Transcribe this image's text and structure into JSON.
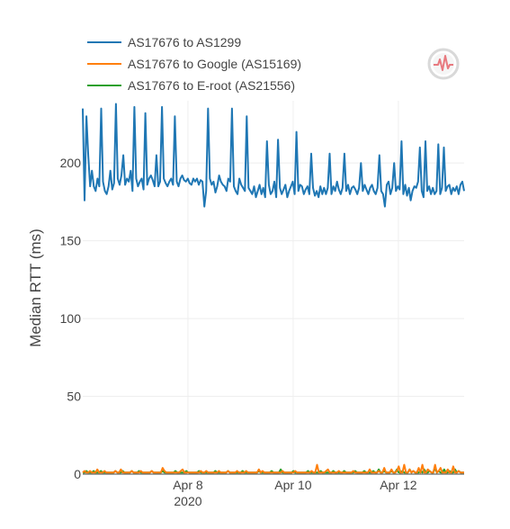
{
  "chart_data": {
    "type": "line",
    "xlabel": "",
    "ylabel": "Median RTT (ms)",
    "ylim": [
      0,
      240
    ],
    "xlim": [
      "2020-04-06",
      "2020-04-13 06:00"
    ],
    "x_ticks": [
      {
        "date": "2020-04-08",
        "label": "Apr 8",
        "sublabel": "2020"
      },
      {
        "date": "2020-04-10",
        "label": "Apr 10",
        "sublabel": ""
      },
      {
        "date": "2020-04-12",
        "label": "Apr 12",
        "sublabel": ""
      }
    ],
    "y_ticks": [
      0,
      50,
      100,
      150,
      200
    ],
    "grid": true,
    "legend_position": "top-left",
    "series": [
      {
        "name": "AS17676 to AS1299",
        "color": "#1f77b4",
        "x_start": "2020-04-06",
        "x_end": "2020-04-13 06:00",
        "values": [
          235,
          176,
          230,
          205,
          185,
          195,
          185,
          182,
          190,
          185,
          235,
          188,
          182,
          180,
          185,
          195,
          183,
          187,
          238,
          190,
          186,
          192,
          205,
          186,
          190,
          188,
          195,
          182,
          236,
          190,
          185,
          188,
          190,
          183,
          232,
          186,
          190,
          192,
          189,
          185,
          205,
          185,
          188,
          236,
          190,
          187,
          185,
          188,
          190,
          186,
          230,
          188,
          185,
          190,
          192,
          189,
          188,
          190,
          187,
          186,
          190,
          188,
          190,
          186,
          189,
          188,
          172,
          182,
          235,
          190,
          186,
          188,
          181,
          185,
          192,
          188,
          186,
          185,
          182,
          190,
          188,
          235,
          185,
          182,
          180,
          190,
          186,
          184,
          182,
          230,
          184,
          182,
          180,
          185,
          178,
          182,
          186,
          180,
          184,
          178,
          214,
          186,
          180,
          182,
          188,
          178,
          215,
          184,
          180,
          183,
          186,
          178,
          182,
          185,
          188,
          180,
          220,
          182,
          186,
          185,
          180,
          183,
          185,
          180,
          206,
          184,
          179,
          182,
          178,
          185,
          180,
          184,
          180,
          184,
          206,
          180,
          185,
          182,
          188,
          183,
          180,
          184,
          206,
          182,
          186,
          180,
          184,
          185,
          183,
          180,
          184,
          200,
          182,
          186,
          183,
          180,
          184,
          186,
          182,
          180,
          184,
          205,
          182,
          180,
          172,
          186,
          188,
          180,
          184,
          200,
          182,
          185,
          183,
          214,
          180,
          186,
          179,
          184,
          176,
          182,
          185,
          184,
          188,
          210,
          182,
          178,
          214,
          182,
          185,
          180,
          184,
          180,
          182,
          212,
          180,
          184,
          210,
          182,
          185,
          186,
          180,
          184,
          182,
          185,
          180,
          186,
          188,
          182
        ]
      },
      {
        "name": "AS17676 to Google (AS15169)",
        "color": "#ff7f0e",
        "x_start": "2020-04-06",
        "x_end": "2020-04-13 06:00",
        "values": [
          1,
          2,
          1,
          1,
          2,
          1,
          1,
          1,
          3,
          1,
          1,
          1,
          2,
          1,
          1,
          1,
          1,
          1,
          2,
          1,
          1,
          3,
          1,
          1,
          1,
          1,
          1,
          2,
          1,
          1,
          1,
          1,
          2,
          1,
          1,
          1,
          1,
          1,
          2,
          1,
          1,
          1,
          1,
          1,
          4,
          2,
          1,
          1,
          1,
          1,
          1,
          1,
          1,
          1,
          2,
          3,
          1,
          1,
          1,
          1,
          1,
          1,
          1,
          1,
          1,
          2,
          1,
          1,
          2,
          1,
          1,
          1,
          1,
          1,
          1,
          2,
          1,
          1,
          1,
          1,
          2,
          1,
          1,
          1,
          1,
          2,
          1,
          1,
          1,
          1,
          2,
          1,
          1,
          1,
          1,
          1,
          1,
          3,
          1,
          2,
          1,
          1,
          1,
          1,
          1,
          1,
          1,
          1,
          1,
          1,
          2,
          1,
          1,
          1,
          1,
          1,
          1,
          2,
          1,
          1,
          1,
          1,
          1,
          1,
          1,
          1,
          2,
          1,
          1,
          6,
          1,
          1,
          1,
          1,
          2,
          3,
          1,
          1,
          1,
          1,
          1,
          2,
          1,
          1,
          1,
          1,
          1,
          1,
          1,
          2,
          1,
          1,
          1,
          1,
          1,
          1,
          1,
          1,
          3,
          1,
          1,
          1,
          1,
          2,
          1,
          1,
          4,
          1,
          1,
          1,
          3,
          1,
          1,
          2,
          5,
          1,
          1,
          6,
          1,
          1,
          3,
          1,
          2,
          1,
          1,
          4,
          1,
          6,
          1,
          1,
          3,
          2,
          1,
          1,
          6,
          1,
          2,
          4,
          1,
          1,
          1,
          3,
          1,
          1,
          5,
          1,
          1,
          2,
          1,
          1,
          1
        ]
      },
      {
        "name": "AS17676 to E-root (AS21556)",
        "color": "#2ca02c",
        "x_start": "2020-04-06",
        "x_end": "2020-04-13 06:00",
        "values": [
          1,
          1,
          2,
          1,
          1,
          1,
          2,
          1,
          1,
          1,
          2,
          1,
          1,
          1,
          1,
          1,
          1,
          1,
          2,
          1,
          1,
          1,
          2,
          1,
          1,
          1,
          1,
          2,
          1,
          1,
          1,
          2,
          1,
          1,
          1,
          1,
          1,
          1,
          2,
          1,
          1,
          1,
          1,
          1,
          2,
          1,
          1,
          1,
          1,
          1,
          1,
          2,
          1,
          1,
          1,
          1,
          1,
          2,
          1,
          1,
          1,
          1,
          1,
          1,
          2,
          1,
          1,
          1,
          1,
          1,
          1,
          1,
          1,
          2,
          1,
          1,
          1,
          1,
          1,
          1,
          2,
          1,
          1,
          1,
          1,
          1,
          1,
          1,
          2,
          1,
          1,
          1,
          1,
          1,
          1,
          1,
          1,
          2,
          1,
          1,
          1,
          1,
          1,
          1,
          2,
          1,
          1,
          1,
          1,
          3,
          1,
          1,
          1,
          1,
          1,
          1,
          2,
          1,
          1,
          1,
          1,
          1,
          1,
          1,
          2,
          1,
          1,
          1,
          1,
          1,
          1,
          2,
          1,
          1,
          1,
          1,
          1,
          1,
          2,
          1,
          1,
          1,
          1,
          1,
          2,
          1,
          1,
          1,
          1,
          1,
          2,
          1,
          1,
          1,
          1,
          2,
          1,
          1,
          1,
          1,
          2,
          1,
          1,
          3,
          1,
          1,
          2,
          1,
          1,
          1,
          2,
          1,
          1,
          3,
          1,
          1,
          2,
          1,
          1,
          1,
          3,
          1,
          2,
          1,
          1,
          1,
          2,
          1,
          3,
          1,
          1,
          2,
          1,
          1,
          4,
          1,
          2,
          1,
          1,
          3,
          1,
          1,
          2,
          1,
          1,
          3,
          1,
          2,
          1,
          1,
          1
        ]
      }
    ]
  },
  "modebar": {
    "logo_icon": "plotly-pulse-logo-icon"
  }
}
